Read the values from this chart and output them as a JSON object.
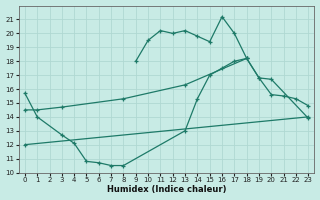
{
  "background_color": "#c8ebe5",
  "grid_color": "#b0d8d2",
  "line_color": "#1e7a68",
  "xlabel": "Humidex (Indice chaleur)",
  "xlim": [
    -0.5,
    23.5
  ],
  "ylim": [
    10,
    22
  ],
  "xticks": [
    0,
    1,
    2,
    3,
    4,
    5,
    6,
    7,
    8,
    9,
    10,
    11,
    12,
    13,
    14,
    15,
    16,
    17,
    18,
    19,
    20,
    21,
    22,
    23
  ],
  "yticks": [
    10,
    11,
    12,
    13,
    14,
    15,
    16,
    17,
    18,
    19,
    20,
    21
  ],
  "curves": [
    {
      "x": [
        0,
        1,
        3,
        4,
        5,
        6,
        7,
        8,
        13,
        14,
        15,
        16,
        17,
        18,
        19,
        20,
        21,
        22,
        23
      ],
      "y": [
        15.7,
        14.0,
        12.7,
        12.1,
        10.8,
        10.7,
        10.5,
        10.5,
        13.0,
        15.3,
        17.0,
        17.5,
        18.0,
        18.2,
        16.8,
        15.6,
        15.5,
        15.3,
        14.8
      ]
    },
    {
      "x": [
        9,
        10,
        11,
        12,
        13,
        14,
        15,
        16,
        17,
        18
      ],
      "y": [
        18.0,
        19.5,
        20.2,
        20.0,
        20.2,
        19.8,
        19.4,
        21.2,
        20.0,
        18.2
      ]
    },
    {
      "x": [
        0,
        1,
        3,
        8,
        13,
        18,
        19,
        20,
        23
      ],
      "y": [
        14.5,
        14.5,
        14.7,
        15.3,
        16.3,
        18.2,
        16.8,
        16.7,
        13.9
      ]
    },
    {
      "x": [
        0,
        23
      ],
      "y": [
        12.0,
        14.0
      ]
    }
  ]
}
